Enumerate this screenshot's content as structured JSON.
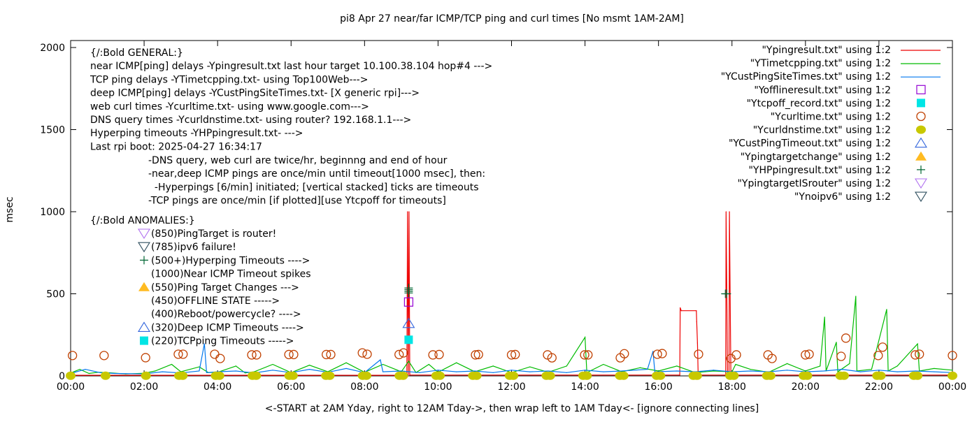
{
  "chart_data": {
    "type": "line",
    "title": "pi8 Apr 27  near/far ICMP/TCP ping and curl times [No msmt 1AM-2AM]",
    "xlabel": "<-START at 2AM Yday, right to 12AM Tday->, then wrap left to 1AM Tday<- [ignore connecting lines]",
    "ylabel": "msec",
    "xlim": [
      0,
      24
    ],
    "ylim": [
      0,
      2000
    ],
    "x_ticks": [
      "00:00",
      "02:00",
      "04:00",
      "06:00",
      "08:00",
      "10:00",
      "12:00",
      "14:00",
      "16:00",
      "18:00",
      "20:00",
      "22:00",
      "00:00"
    ],
    "y_ticks": [
      "0",
      "500",
      "1000",
      "1500",
      "2000"
    ],
    "grid": false,
    "legend_placement": "top-right",
    "general_notes": [
      "{/:Bold GENERAL:}",
      "near ICMP[ping] delays -Ypingresult.txt last hour target 10.100.38.104 hop#4 --->",
      "TCP ping delays -YTimetcpping.txt- using Top100Web--->",
      "deep ICMP[ping] delays -YCustPingSiteTimes.txt- [X generic rpi]--->",
      "web curl times -Ycurltime.txt- using www.google.com--->",
      "DNS query times -Ycurldnstime.txt- using router? 192.168.1.1--->",
      "Hyperping timeouts -YHPpingresult.txt- --->",
      "Last rpi boot: 2025-04-27 16:34:17"
    ],
    "detail_notes": [
      "-DNS query, web curl are twice/hr, beginnng and end of hour",
      "-near,deep ICMP pings are once/min until timeout[1000 msec], then:",
      "  -Hyperpings [6/min] initiated; [vertical stacked] ticks are timeouts",
      "-TCP pings are once/min [if plotted][use Ytcpoff for timeouts]"
    ],
    "anomalies_title": "{/:Bold ANOMALIES:}",
    "anomalies": [
      {
        "label": "(850)PingTarget is router!",
        "marker": "triangle-down-open",
        "color": "#b070f0"
      },
      {
        "label": "(785)ipv6 failure!",
        "marker": "triangle-down-open",
        "color": "#2f4f5f"
      },
      {
        "label": "(500+)Hyperping Timeouts ---->",
        "marker": "plus",
        "color": "#006633"
      },
      {
        "label": "(1000)Near ICMP Timeout spikes",
        "marker": "none",
        "color": ""
      },
      {
        "label": "(550)Ping Target Changes --->",
        "marker": "triangle-up-filled",
        "color": "#ffbb22"
      },
      {
        "label": "(450)OFFLINE STATE ----->",
        "marker": "none",
        "color": ""
      },
      {
        "label": "(400)Reboot/powercycle? ---->",
        "marker": "none",
        "color": ""
      },
      {
        "label": "(320)Deep ICMP Timeouts ---->",
        "marker": "triangle-up-open",
        "color": "#3366dd"
      },
      {
        "label": "(220)TCPping Timeouts ----->",
        "marker": "square-filled",
        "color": "#00e5e5"
      }
    ],
    "series": [
      {
        "name": "\"Ypingresult.txt\" using 1:2",
        "style": "line",
        "color": "#ee0000",
        "points": [
          [
            0,
            4
          ],
          [
            9.15,
            4
          ],
          [
            9.17,
            1000
          ],
          [
            9.19,
            6
          ],
          [
            9.21,
            1000
          ],
          [
            9.23,
            5
          ],
          [
            16.58,
            5
          ],
          [
            16.59,
            415
          ],
          [
            16.62,
            397
          ],
          [
            17.03,
            397
          ],
          [
            17.04,
            330
          ],
          [
            17.06,
            200
          ],
          [
            17.08,
            5
          ],
          [
            17.83,
            5
          ],
          [
            17.84,
            1000
          ],
          [
            17.86,
            500
          ],
          [
            17.88,
            5
          ],
          [
            17.92,
            5
          ],
          [
            17.93,
            1000
          ],
          [
            17.95,
            500
          ],
          [
            17.97,
            5
          ],
          [
            24,
            5
          ]
        ]
      },
      {
        "name": "\"YTimetcpping.txt\" using 1:2",
        "style": "line",
        "color": "#00bb00",
        "points": [
          [
            0,
            18
          ],
          [
            0.25,
            40
          ],
          [
            0.5,
            15
          ],
          [
            0.75,
            22
          ],
          [
            1,
            20
          ],
          [
            1.5,
            12
          ],
          [
            2,
            16
          ],
          [
            2.3,
            30
          ],
          [
            2.75,
            70
          ],
          [
            3,
            25
          ],
          [
            3.5,
            55
          ],
          [
            3.75,
            20
          ],
          [
            4,
            22
          ],
          [
            4.5,
            60
          ],
          [
            4.75,
            18
          ],
          [
            5,
            25
          ],
          [
            5.5,
            70
          ],
          [
            6,
            20
          ],
          [
            6.5,
            65
          ],
          [
            7,
            25
          ],
          [
            7.5,
            80
          ],
          [
            8,
            22
          ],
          [
            8.5,
            70
          ],
          [
            9,
            25
          ],
          [
            9.2,
            90
          ],
          [
            9.4,
            20
          ],
          [
            9.75,
            70
          ],
          [
            10,
            22
          ],
          [
            10.5,
            80
          ],
          [
            11,
            25
          ],
          [
            11.5,
            60
          ],
          [
            12,
            20
          ],
          [
            12.5,
            55
          ],
          [
            13,
            22
          ],
          [
            13.5,
            60
          ],
          [
            14,
            235
          ],
          [
            14.05,
            20
          ],
          [
            14.5,
            70
          ],
          [
            15,
            25
          ],
          [
            15.5,
            50
          ],
          [
            16,
            30
          ],
          [
            16.5,
            60
          ],
          [
            17,
            20
          ],
          [
            17.5,
            30
          ],
          [
            18,
            25
          ],
          [
            18.1,
            70
          ],
          [
            18.5,
            40
          ],
          [
            19,
            22
          ],
          [
            19.5,
            75
          ],
          [
            20,
            30
          ],
          [
            20.4,
            60
          ],
          [
            20.52,
            358
          ],
          [
            20.56,
            30
          ],
          [
            20.84,
            205
          ],
          [
            20.88,
            25
          ],
          [
            21.2,
            75
          ],
          [
            21.37,
            485
          ],
          [
            21.4,
            30
          ],
          [
            21.8,
            40
          ],
          [
            22.21,
            405
          ],
          [
            22.25,
            30
          ],
          [
            22.5,
            60
          ],
          [
            23.05,
            195
          ],
          [
            23.1,
            30
          ],
          [
            23.5,
            45
          ],
          [
            24,
            35
          ]
        ]
      },
      {
        "name": "\"YCustPingSiteTimes.txt\" using 1:2",
        "style": "line",
        "color": "#0077ee",
        "points": [
          [
            0,
            15
          ],
          [
            0.4,
            40
          ],
          [
            0.8,
            20
          ],
          [
            1.2,
            15
          ],
          [
            2,
            12
          ],
          [
            2.5,
            25
          ],
          [
            3,
            18
          ],
          [
            3.5,
            30
          ],
          [
            3.64,
            196
          ],
          [
            3.7,
            20
          ],
          [
            4,
            25
          ],
          [
            4.5,
            30
          ],
          [
            5,
            18
          ],
          [
            5.5,
            35
          ],
          [
            6,
            20
          ],
          [
            6.5,
            40
          ],
          [
            7,
            22
          ],
          [
            7.5,
            45
          ],
          [
            8,
            20
          ],
          [
            8.43,
            98
          ],
          [
            8.5,
            25
          ],
          [
            9,
            30
          ],
          [
            9.5,
            20
          ],
          [
            10,
            35
          ],
          [
            10.5,
            25
          ],
          [
            11,
            30
          ],
          [
            11.5,
            20
          ],
          [
            12,
            35
          ],
          [
            12.5,
            25
          ],
          [
            13,
            30
          ],
          [
            13.5,
            20
          ],
          [
            14,
            35
          ],
          [
            14.5,
            25
          ],
          [
            15,
            30
          ],
          [
            15.7,
            40
          ],
          [
            15.85,
            150
          ],
          [
            15.9,
            25
          ],
          [
            16.5,
            30
          ],
          [
            17,
            25
          ],
          [
            17.5,
            35
          ],
          [
            18,
            25
          ],
          [
            18.5,
            30
          ],
          [
            19,
            25
          ],
          [
            19.5,
            35
          ],
          [
            20,
            25
          ],
          [
            20.5,
            30
          ],
          [
            21,
            40
          ],
          [
            21.5,
            25
          ],
          [
            22,
            35
          ],
          [
            22.5,
            25
          ],
          [
            23,
            30
          ],
          [
            23.5,
            25
          ],
          [
            24,
            20
          ]
        ]
      },
      {
        "name": "\"Yofflineresult.txt\" using 1:2",
        "style": "square-open",
        "color": "#9400d3",
        "points": [
          [
            9.2,
            450
          ]
        ]
      },
      {
        "name": "\"Ytcpoff_record.txt\" using 1:2",
        "style": "square-filled",
        "color": "#00e5e5",
        "points": [
          [
            9.2,
            220
          ]
        ]
      },
      {
        "name": "\"Ycurltime.txt\" using 1:2",
        "style": "circle-open",
        "color": "#c04000",
        "points": [
          [
            0.05,
            124
          ],
          [
            0.91,
            124
          ],
          [
            2.04,
            111
          ],
          [
            2.93,
            132
          ],
          [
            3.06,
            132
          ],
          [
            3.92,
            132
          ],
          [
            4.07,
            106
          ],
          [
            4.93,
            128
          ],
          [
            5.06,
            128
          ],
          [
            5.94,
            130
          ],
          [
            6.07,
            130
          ],
          [
            6.96,
            130
          ],
          [
            7.08,
            130
          ],
          [
            7.94,
            140
          ],
          [
            8.07,
            132
          ],
          [
            8.94,
            130
          ],
          [
            9.06,
            140
          ],
          [
            9.86,
            128
          ],
          [
            10.03,
            130
          ],
          [
            11.02,
            128
          ],
          [
            11.1,
            130
          ],
          [
            12.0,
            128
          ],
          [
            12.1,
            130
          ],
          [
            12.98,
            128
          ],
          [
            13.1,
            110
          ],
          [
            13.99,
            128
          ],
          [
            14.08,
            128
          ],
          [
            14.96,
            110
          ],
          [
            15.07,
            135
          ],
          [
            15.97,
            132
          ],
          [
            16.1,
            136
          ],
          [
            17.09,
            132
          ],
          [
            17.97,
            106
          ],
          [
            18.12,
            128
          ],
          [
            18.98,
            128
          ],
          [
            19.09,
            106
          ],
          [
            20.0,
            128
          ],
          [
            20.1,
            132
          ],
          [
            20.97,
            119
          ],
          [
            21.1,
            230
          ],
          [
            21.98,
            124
          ],
          [
            22.1,
            175
          ],
          [
            22.99,
            128
          ],
          [
            23.1,
            132
          ],
          [
            24.0,
            124
          ]
        ]
      },
      {
        "name": "\"Ycurldnstime.txt\" using 1:2",
        "style": "circle-filled",
        "color": "#c8c800",
        "points": [
          [
            0,
            1
          ],
          [
            0.95,
            1
          ],
          [
            2.05,
            1
          ],
          [
            2.95,
            1
          ],
          [
            3.05,
            1
          ],
          [
            3.95,
            1
          ],
          [
            4.05,
            1
          ],
          [
            4.95,
            1
          ],
          [
            5.05,
            1
          ],
          [
            5.95,
            1
          ],
          [
            6.05,
            1
          ],
          [
            6.95,
            1
          ],
          [
            7.05,
            1
          ],
          [
            7.95,
            1
          ],
          [
            8.05,
            1
          ],
          [
            8.95,
            1
          ],
          [
            9.05,
            1
          ],
          [
            9.95,
            1
          ],
          [
            10.05,
            1
          ],
          [
            10.95,
            1
          ],
          [
            11.05,
            1
          ],
          [
            11.95,
            1
          ],
          [
            12.05,
            1
          ],
          [
            12.95,
            1
          ],
          [
            13.05,
            1
          ],
          [
            13.95,
            1
          ],
          [
            14.05,
            1
          ],
          [
            14.95,
            1
          ],
          [
            15.05,
            1
          ],
          [
            15.95,
            1
          ],
          [
            16.05,
            1
          ],
          [
            16.95,
            1
          ],
          [
            17.05,
            1
          ],
          [
            17.95,
            1
          ],
          [
            18.05,
            1
          ],
          [
            18.95,
            1
          ],
          [
            19.05,
            1
          ],
          [
            19.95,
            1
          ],
          [
            20.05,
            1
          ],
          [
            20.95,
            1
          ],
          [
            21.05,
            1
          ],
          [
            21.95,
            1
          ],
          [
            22.05,
            1
          ],
          [
            22.95,
            1
          ],
          [
            23.05,
            1
          ],
          [
            24.0,
            1
          ]
        ]
      },
      {
        "name": "\"YCustPingTimeout.txt\" using 1:2",
        "style": "triangle-up-open",
        "color": "#3366dd",
        "points": [
          [
            9.2,
            320
          ]
        ]
      },
      {
        "name": "\"Ypingtargetchange\" using 1:2",
        "style": "triangle-up-filled",
        "color": "#ffbb22",
        "points": []
      },
      {
        "name": "\"YHPpingresult.txt\" using 1:2",
        "style": "plus",
        "color": "#006633",
        "points": [
          [
            9.2,
            505
          ],
          [
            9.2,
            515
          ],
          [
            9.2,
            525
          ],
          [
            9.2,
            535
          ],
          [
            17.82,
            500
          ],
          [
            17.86,
            500
          ]
        ]
      },
      {
        "name": "\"YpingtargetISrouter\" using 1:2",
        "style": "triangle-down-open",
        "color": "#b070f0",
        "points": []
      },
      {
        "name": "\"Ynoipv6\" using 1:2",
        "style": "triangle-down-open",
        "color": "#2f4f5f",
        "points": []
      }
    ]
  }
}
